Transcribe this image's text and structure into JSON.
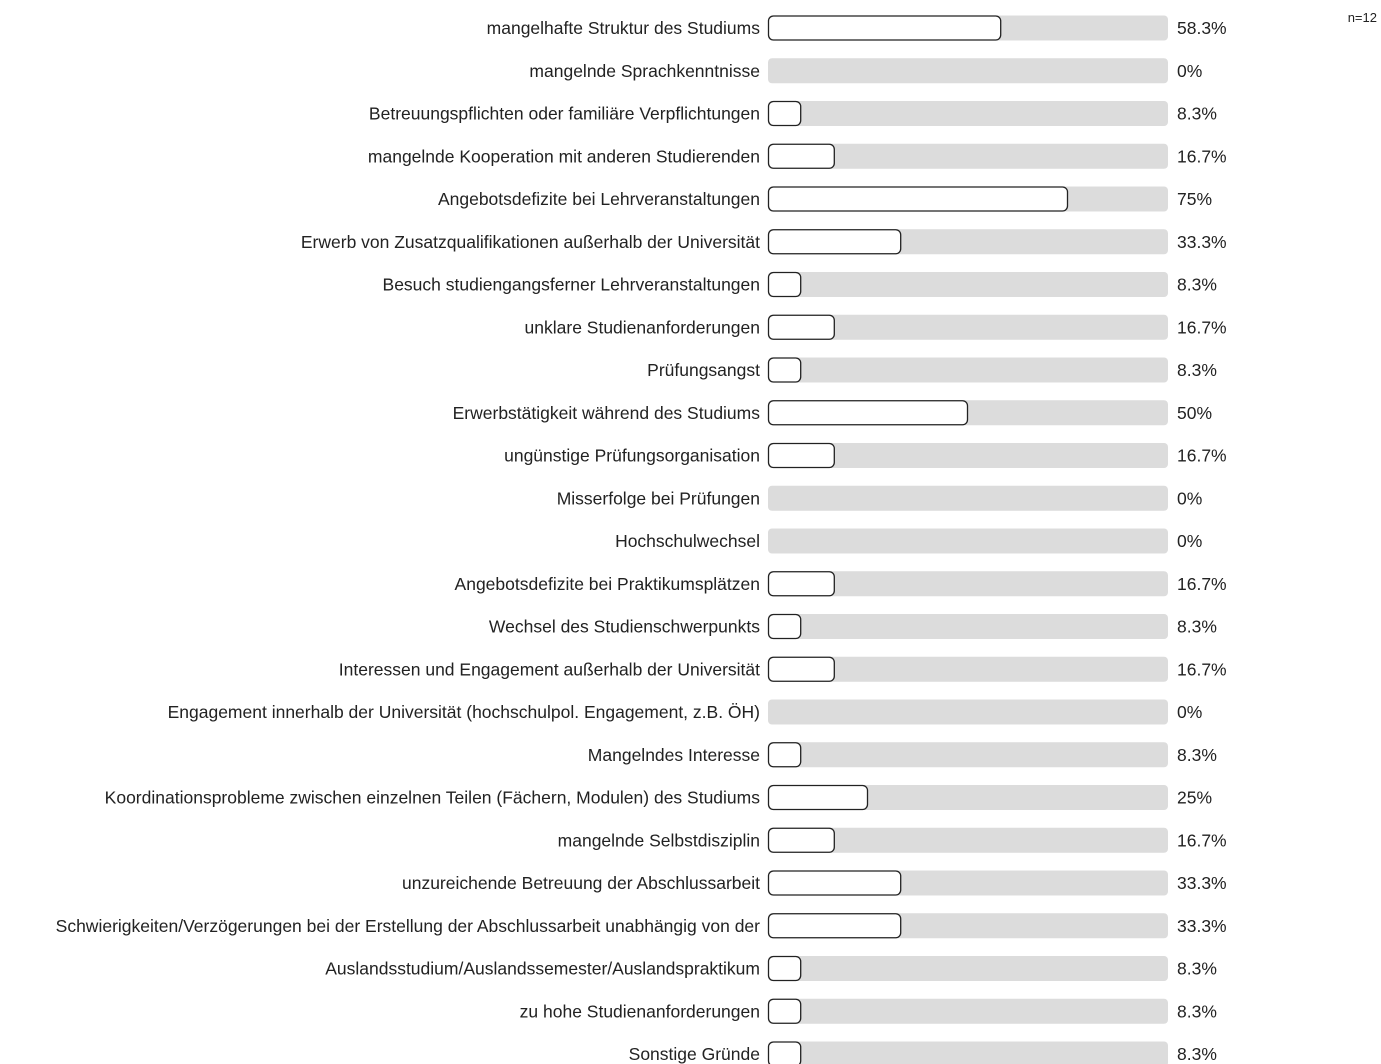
{
  "n_label": "n=12",
  "colors": {
    "track": "#dcdcdc",
    "bar_fill": "#ffffff",
    "bar_stroke": "#222222"
  },
  "chart_data": {
    "type": "bar",
    "orientation": "horizontal",
    "xlim": [
      0,
      100
    ],
    "grid": false,
    "categories": [
      "mangelhafte Struktur des Studiums",
      "mangelnde Sprachkenntnisse",
      "Betreuungspflichten oder familiäre Verpflichtungen",
      "mangelnde Kooperation mit anderen Studierenden",
      "Angebotsdefizite bei Lehrveranstaltungen",
      "Erwerb von Zusatzqualifikationen außerhalb der Universität",
      "Besuch studiengangsferner Lehrveranstaltungen",
      "unklare Studienanforderungen",
      "Prüfungsangst",
      "Erwerbstätigkeit während des Studiums",
      "ungünstige Prüfungsorganisation",
      "Misserfolge bei Prüfungen",
      "Hochschulwechsel",
      "Angebotsdefizite bei Praktikumsplätzen",
      "Wechsel des Studienschwerpunkts",
      "Interessen und Engagement außerhalb der Universität",
      "Engagement innerhalb der Universität (hochschulpol. Engagement, z.B. ÖH)",
      "Mangelndes Interesse",
      "Koordinationsprobleme zwischen einzelnen Teilen (Fächern, Modulen) des Studiums",
      "mangelnde Selbstdisziplin",
      "unzureichende Betreuung der Abschlussarbeit",
      "Schwierigkeiten/Verzögerungen bei der Erstellung der Abschlussarbeit unabhängig von der",
      "Auslandsstudium/Auslandssemester/Auslandspraktikum",
      "zu hohe Studienanforderungen",
      "Sonstige Gründe"
    ],
    "values": [
      58.3,
      0,
      8.3,
      16.7,
      75,
      33.3,
      8.3,
      16.7,
      8.3,
      50,
      16.7,
      0,
      0,
      16.7,
      8.3,
      16.7,
      0,
      8.3,
      25,
      16.7,
      33.3,
      33.3,
      8.3,
      8.3,
      8.3
    ],
    "value_labels": [
      "58.3%",
      "0%",
      "8.3%",
      "16.7%",
      "75%",
      "33.3%",
      "8.3%",
      "16.7%",
      "8.3%",
      "50%",
      "16.7%",
      "0%",
      "0%",
      "16.7%",
      "8.3%",
      "16.7%",
      "0%",
      "8.3%",
      "25%",
      "16.7%",
      "33.3%",
      "33.3%",
      "8.3%",
      "8.3%",
      "8.3%"
    ]
  }
}
